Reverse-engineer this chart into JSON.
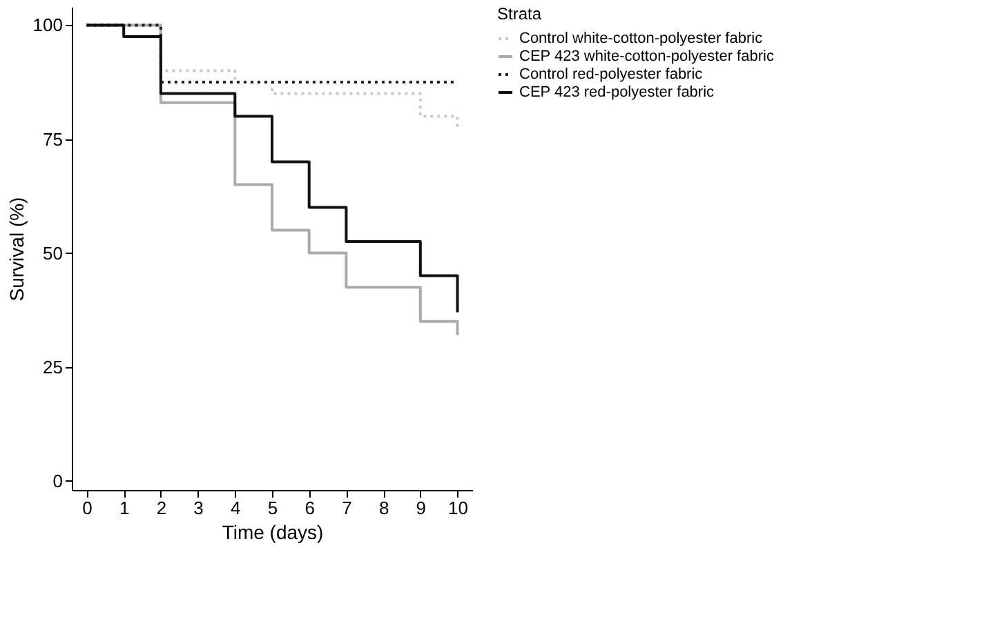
{
  "chart_data": {
    "type": "step",
    "xlabel": "Time (days)",
    "ylabel": "Survival (%)",
    "legend_title": "Strata",
    "legend": "right",
    "grid": false,
    "xlim": [
      -0.4,
      10.4
    ],
    "xticks": [
      0,
      1,
      2,
      3,
      4,
      5,
      6,
      7,
      8,
      9,
      10
    ],
    "ylim": [
      -2,
      104
    ],
    "yticks": [
      0,
      25,
      50,
      75,
      100
    ],
    "series": [
      {
        "name": "Control white-cotton-polyester fabric",
        "color": "#c8c8c8",
        "line_style": "dotted",
        "x": [
          0,
          2,
          4,
          5,
          9,
          10
        ],
        "values": [
          100,
          90,
          87.5,
          85,
          80,
          77.5
        ]
      },
      {
        "name": "CEP 423 white-cotton-polyester fabric",
        "color": "#aaaaaa",
        "line_style": "solid",
        "x": [
          0,
          2,
          4,
          5,
          6,
          7,
          9,
          10
        ],
        "values": [
          100,
          83,
          65,
          55,
          50,
          42.5,
          35,
          32
        ]
      },
      {
        "name": "Control red-polyester fabric",
        "color": "#222222",
        "line_style": "dotted",
        "x": [
          0,
          2,
          10
        ],
        "values": [
          100,
          87.5,
          87.5
        ]
      },
      {
        "name": "CEP 423 red-polyester fabric",
        "color": "#111111",
        "line_style": "solid",
        "x": [
          0,
          1,
          2,
          4,
          5,
          6,
          7,
          9,
          10
        ],
        "values": [
          100,
          97.5,
          85,
          80,
          70,
          60,
          52.5,
          45,
          37
        ]
      }
    ]
  }
}
